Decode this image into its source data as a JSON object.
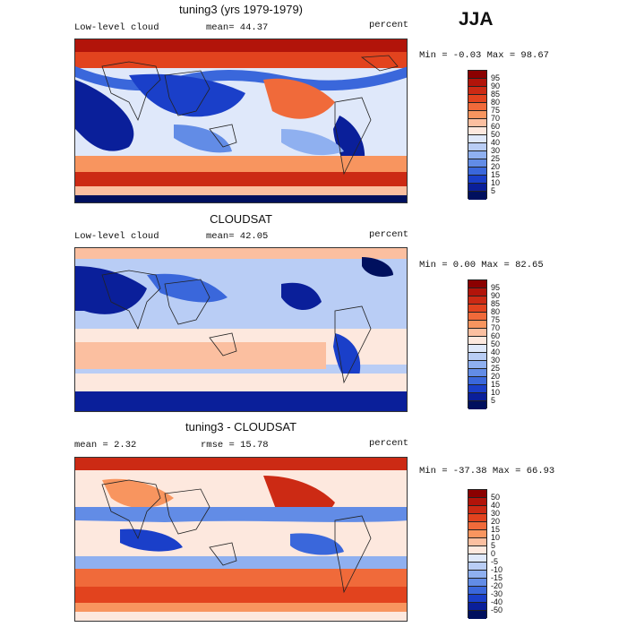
{
  "season": "JJA",
  "panels": [
    {
      "title": "tuning3 (yrs 1979-1979)",
      "left_label": "Low-level cloud",
      "middle_label": "mean=  44.37",
      "right_label": "percent",
      "minmax": "Min =  -0.03 Max =  98.67",
      "colorbar_labels": [
        "95",
        "90",
        "85",
        "80",
        "75",
        "70",
        "60",
        "50",
        "40",
        "30",
        "25",
        "20",
        "15",
        "10",
        "5"
      ],
      "colorbar_colors": [
        "#8b0000",
        "#b2140a",
        "#cc2a14",
        "#e2431e",
        "#f06a3a",
        "#f8955f",
        "#fbbfa0",
        "#fde8de",
        "#dfe8fa",
        "#b9cdf5",
        "#8fb0f0",
        "#628ce6",
        "#3a67db",
        "#1a3fc9",
        "#0a1f9a",
        "#00105e"
      ]
    },
    {
      "title": "CLOUDSAT",
      "left_label": "Low-level cloud",
      "middle_label": "mean=  42.05",
      "right_label": "percent",
      "minmax": "Min =   0.00 Max =  82.65",
      "colorbar_labels": [
        "95",
        "90",
        "85",
        "80",
        "75",
        "70",
        "60",
        "50",
        "40",
        "30",
        "25",
        "20",
        "15",
        "10",
        "5"
      ],
      "colorbar_colors": [
        "#8b0000",
        "#b2140a",
        "#cc2a14",
        "#e2431e",
        "#f06a3a",
        "#f8955f",
        "#fbbfa0",
        "#fde8de",
        "#dfe8fa",
        "#b9cdf5",
        "#8fb0f0",
        "#628ce6",
        "#3a67db",
        "#1a3fc9",
        "#0a1f9a",
        "#00105e"
      ]
    },
    {
      "title": "tuning3 - CLOUDSAT",
      "left_label": "mean =   2.32",
      "middle_label": "rmse =  15.78",
      "right_label": "percent",
      "minmax": "Min = -37.38 Max =  66.93",
      "colorbar_labels": [
        "50",
        "40",
        "30",
        "20",
        "15",
        "10",
        "5",
        "0",
        "-5",
        "-10",
        "-15",
        "-20",
        "-30",
        "-40",
        "-50"
      ],
      "colorbar_colors": [
        "#8b0000",
        "#b2140a",
        "#cc2a14",
        "#e2431e",
        "#f06a3a",
        "#f8955f",
        "#fbbfa0",
        "#fde8de",
        "#dfe8fa",
        "#b9cdf5",
        "#8fb0f0",
        "#628ce6",
        "#3a67db",
        "#1a3fc9",
        "#0a1f9a",
        "#00105e"
      ]
    }
  ]
}
